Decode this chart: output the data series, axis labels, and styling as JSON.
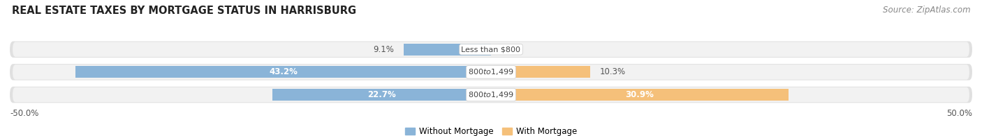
{
  "title": "REAL ESTATE TAXES BY MORTGAGE STATUS IN HARRISBURG",
  "source": "Source: ZipAtlas.com",
  "rows": [
    {
      "label": "Less than $800",
      "without_mortgage": 9.1,
      "with_mortgage": 0.0
    },
    {
      "label": "$800 to $1,499",
      "without_mortgage": 43.2,
      "with_mortgage": 10.3
    },
    {
      "label": "$800 to $1,499",
      "without_mortgage": 22.7,
      "with_mortgage": 30.9
    }
  ],
  "color_without": "#8ab4d8",
  "color_with": "#f5c07a",
  "axis_min": -50.0,
  "axis_max": 50.0,
  "legend_without": "Without Mortgage",
  "legend_with": "With Mortgage",
  "bg_row_color": "#e8e8e8",
  "bg_row_color2": "#f5f5f5",
  "title_fontsize": 10.5,
  "source_fontsize": 8.5,
  "label_fontsize": 8.5,
  "tick_fontsize": 8.5,
  "inside_label_threshold": 15
}
